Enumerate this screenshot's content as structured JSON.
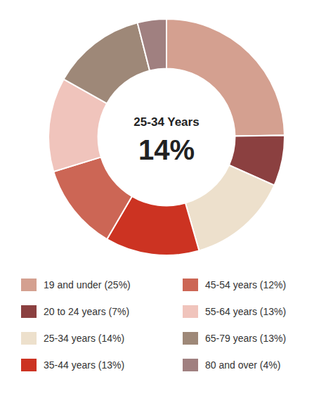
{
  "chart_data": {
    "type": "pie",
    "title": "25-34 Years",
    "subtitle": "14%",
    "categories": [
      "19 and under (25%)",
      "20 to 24 years (7%)",
      "25-34 years (14%)",
      "35-44 years (13%)",
      "45-54 years (12%)",
      "55-64 years (13%)",
      "65-79 years (13%)",
      "80 and over (4%)"
    ],
    "values": [
      25,
      7,
      14,
      13,
      12,
      13,
      13,
      4
    ],
    "colors": [
      "#D4A090",
      "#8B4040",
      "#EDE0CC",
      "#CC3322",
      "#CC6655",
      "#F0C4BC",
      "#9E8878",
      "#A08080"
    ],
    "legend": "bottom"
  }
}
